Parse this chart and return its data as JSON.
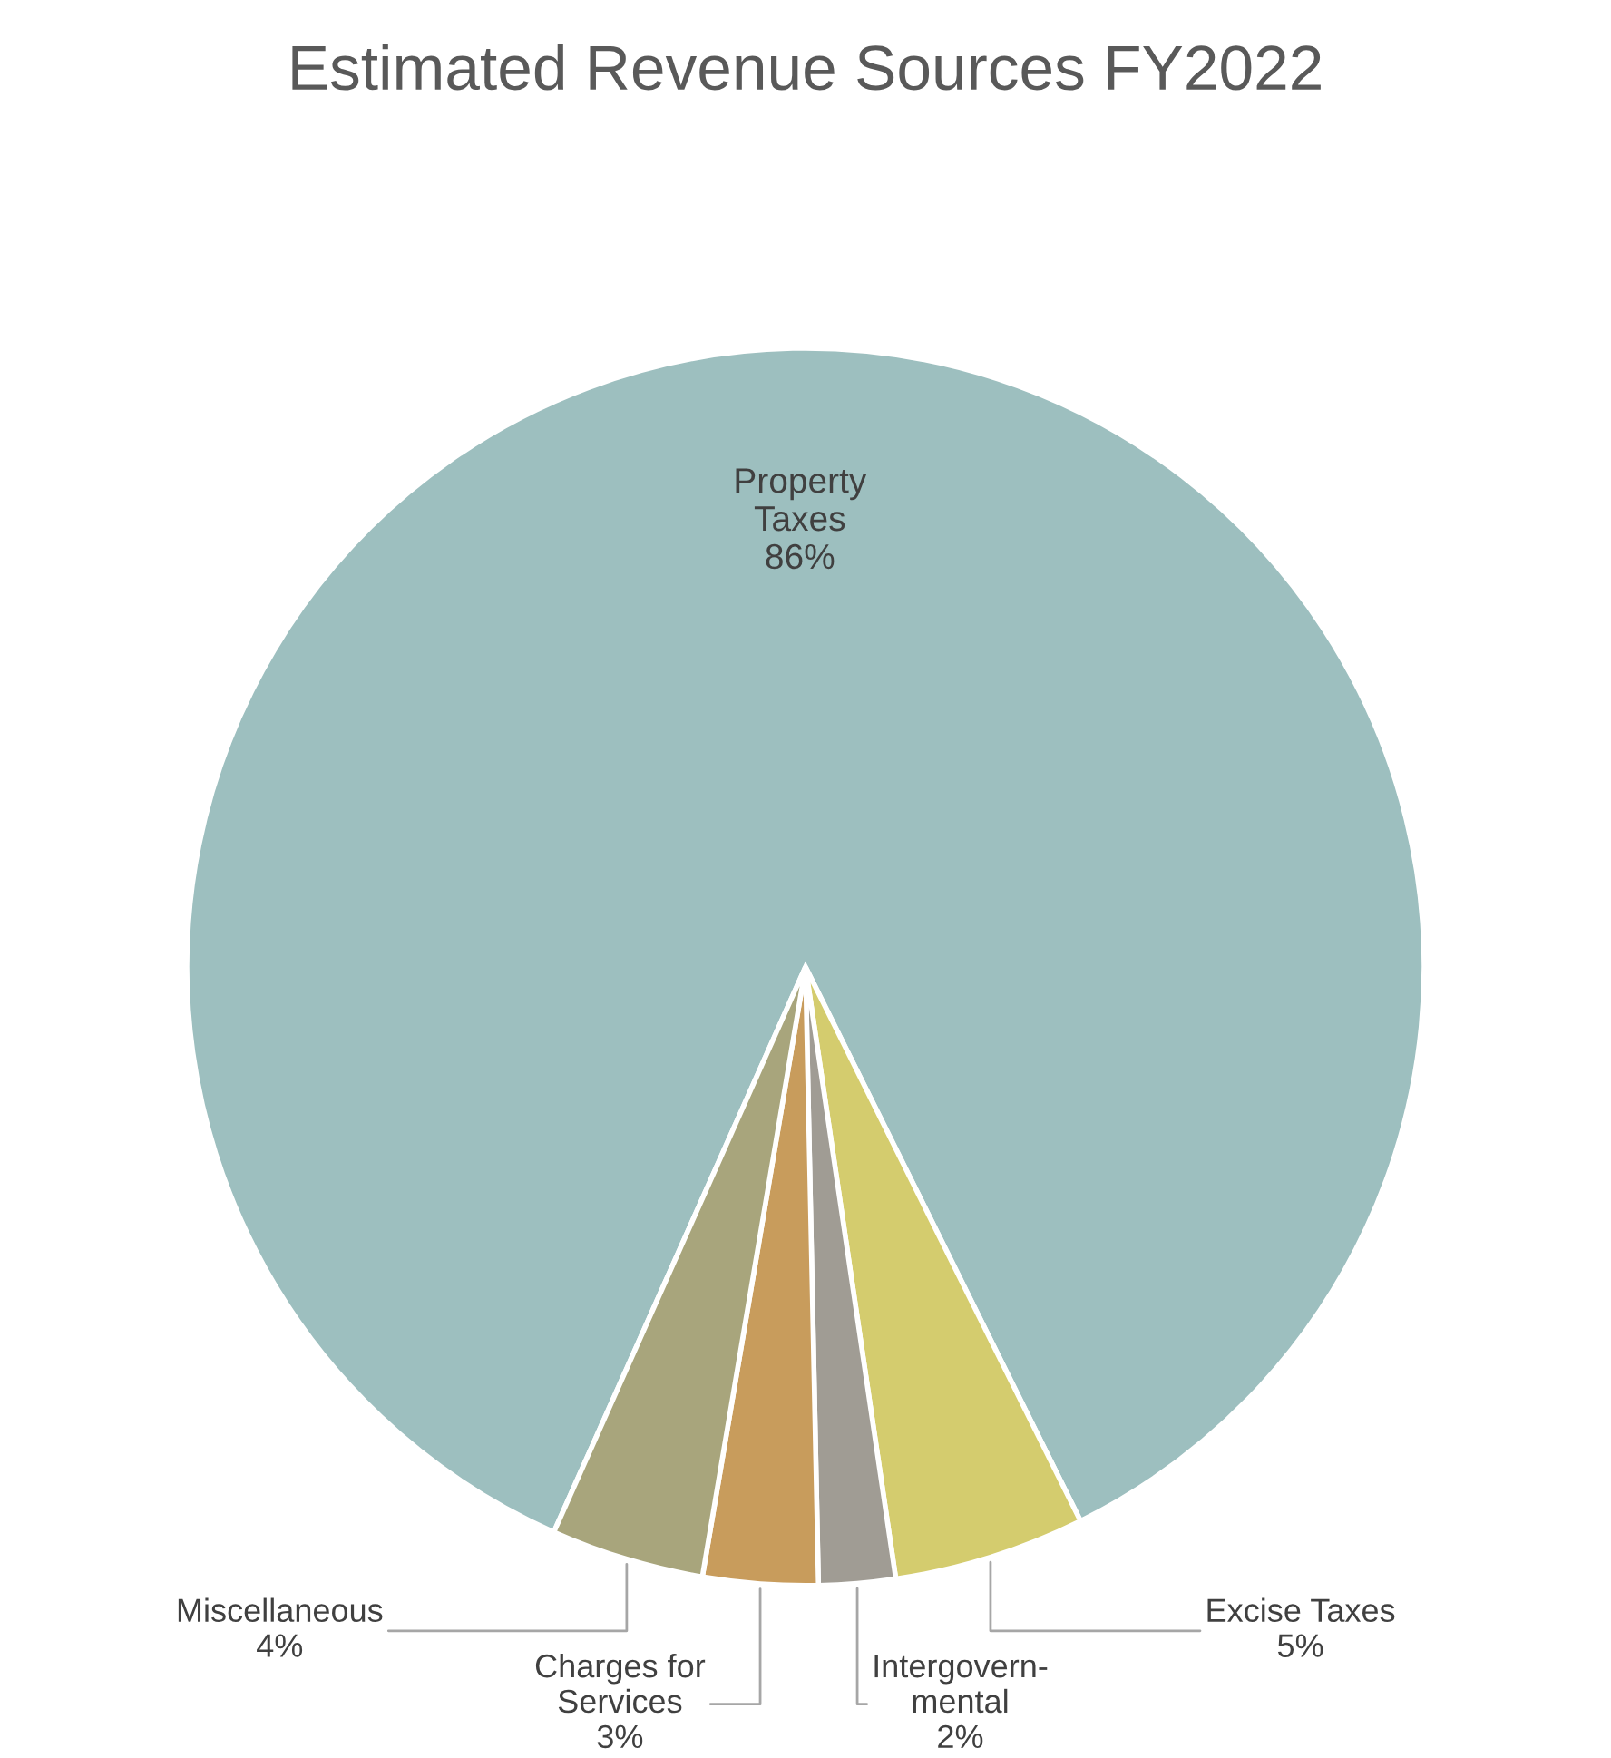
{
  "chart_data": {
    "type": "pie",
    "title": "Estimated Revenue Sources FY2022",
    "categories": [
      "Property\nTaxes",
      "Excise Taxes",
      "Intergovern-\nmental",
      "Charges for\nServices",
      "Miscellaneous"
    ],
    "values": [
      86,
      5,
      2,
      3,
      4
    ],
    "value_labels": [
      "86%",
      "5%",
      "2%",
      "3%",
      "4%"
    ],
    "colors": [
      "#9dbfbf",
      "#d4cc6e",
      "#a09c94",
      "#c89c5c",
      "#a8a57c"
    ],
    "legend": false
  }
}
